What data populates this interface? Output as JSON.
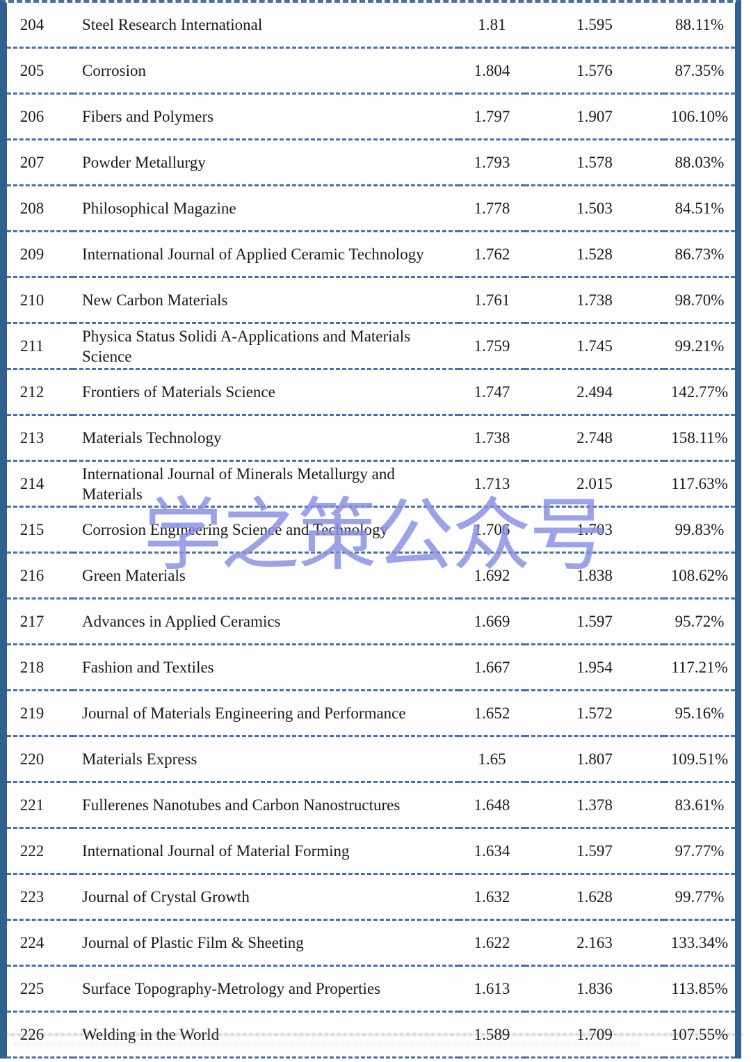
{
  "watermark": {
    "text": "学之策公众号",
    "color": "#858de0"
  },
  "colors": {
    "side_border_blue": "#33618f",
    "dashed_divider_blue": "#4a70a0",
    "text_color": "#1a1a1a",
    "background": "#ffffff"
  },
  "table": {
    "rows": [
      {
        "rank": "204",
        "journal": "Steel Research International",
        "value1": "1.81",
        "value2": "1.595",
        "percent": "88.11%"
      },
      {
        "rank": "205",
        "journal": "Corrosion",
        "value1": "1.804",
        "value2": "1.576",
        "percent": "87.35%"
      },
      {
        "rank": "206",
        "journal": "Fibers and Polymers",
        "value1": "1.797",
        "value2": "1.907",
        "percent": "106.10%"
      },
      {
        "rank": "207",
        "journal": "Powder Metallurgy",
        "value1": "1.793",
        "value2": "1.578",
        "percent": "88.03%"
      },
      {
        "rank": "208",
        "journal": "Philosophical Magazine",
        "value1": "1.778",
        "value2": "1.503",
        "percent": "84.51%"
      },
      {
        "rank": "209",
        "journal": "International Journal of Applied Ceramic Technology",
        "value1": "1.762",
        "value2": "1.528",
        "percent": "86.73%"
      },
      {
        "rank": "210",
        "journal": "New Carbon Materials",
        "value1": "1.761",
        "value2": "1.738",
        "percent": "98.70%"
      },
      {
        "rank": "211",
        "journal": "Physica Status Solidi A-Applications and Materials Science",
        "value1": "1.759",
        "value2": "1.745",
        "percent": "99.21%"
      },
      {
        "rank": "212",
        "journal": "Frontiers of Materials Science",
        "value1": "1.747",
        "value2": "2.494",
        "percent": "142.77%"
      },
      {
        "rank": "213",
        "journal": "Materials Technology",
        "value1": "1.738",
        "value2": "2.748",
        "percent": "158.11%"
      },
      {
        "rank": "214",
        "journal": "International Journal of Minerals Metallurgy and Materials",
        "value1": "1.713",
        "value2": "2.015",
        "percent": "117.63%"
      },
      {
        "rank": "215",
        "journal": "Corrosion Engineering Science and Technology",
        "value1": "1.706",
        "value2": "1.703",
        "percent": "99.83%"
      },
      {
        "rank": "216",
        "journal": "Green Materials",
        "value1": "1.692",
        "value2": "1.838",
        "percent": "108.62%"
      },
      {
        "rank": "217",
        "journal": "Advances in Applied Ceramics",
        "value1": "1.669",
        "value2": "1.597",
        "percent": "95.72%"
      },
      {
        "rank": "218",
        "journal": "Fashion and Textiles",
        "value1": "1.667",
        "value2": "1.954",
        "percent": "117.21%"
      },
      {
        "rank": "219",
        "journal": "Journal of Materials Engineering and Performance",
        "value1": "1.652",
        "value2": "1.572",
        "percent": "95.16%"
      },
      {
        "rank": "220",
        "journal": "Materials Express",
        "value1": "1.65",
        "value2": "1.807",
        "percent": "109.51%"
      },
      {
        "rank": "221",
        "journal": "Fullerenes Nanotubes and Carbon Nanostructures",
        "value1": "1.648",
        "value2": "1.378",
        "percent": "83.61%"
      },
      {
        "rank": "222",
        "journal": "International Journal of Material Forming",
        "value1": "1.634",
        "value2": "1.597",
        "percent": "97.77%"
      },
      {
        "rank": "223",
        "journal": "Journal of Crystal Growth",
        "value1": "1.632",
        "value2": "1.628",
        "percent": "99.77%"
      },
      {
        "rank": "224",
        "journal": "Journal of Plastic Film & Sheeting",
        "value1": "1.622",
        "value2": "2.163",
        "percent": "133.34%"
      },
      {
        "rank": "225",
        "journal": "Surface Topography-Metrology and Properties",
        "value1": "1.613",
        "value2": "1.836",
        "percent": "113.85%"
      },
      {
        "rank": "226",
        "journal": "Welding in the World",
        "value1": "1.589",
        "value2": "1.709",
        "percent": "107.55%"
      }
    ]
  }
}
